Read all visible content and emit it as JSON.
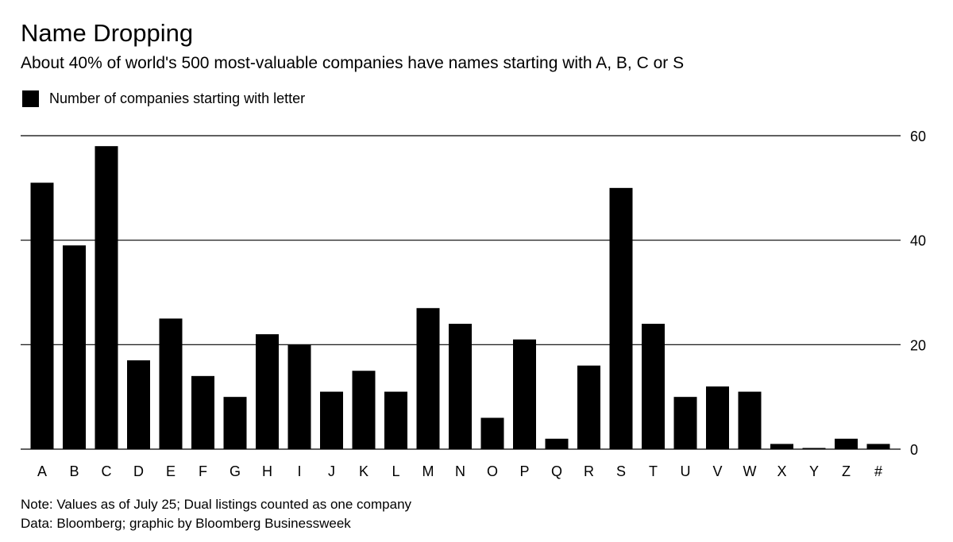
{
  "chart_data": {
    "type": "bar",
    "title": "Name Dropping",
    "subtitle": "About 40% of world's 500 most-valuable companies have names starting with A, B, C or S",
    "legend": [
      "Number of companies starting with letter"
    ],
    "categories": [
      "A",
      "B",
      "C",
      "D",
      "E",
      "F",
      "G",
      "H",
      "I",
      "J",
      "K",
      "L",
      "M",
      "N",
      "O",
      "P",
      "Q",
      "R",
      "S",
      "T",
      "U",
      "V",
      "W",
      "X",
      "Y",
      "Z",
      "#"
    ],
    "series": [
      {
        "name": "Number of companies starting with letter",
        "values": [
          51,
          39,
          58,
          17,
          25,
          14,
          10,
          22,
          20,
          11,
          15,
          11,
          27,
          24,
          6,
          21,
          2,
          16,
          50,
          24,
          10,
          12,
          11,
          1,
          0,
          2,
          1
        ]
      }
    ],
    "ylim": [
      0,
      60
    ],
    "yticks": [
      "0",
      "20",
      "40",
      "60"
    ],
    "grid": true,
    "y_axis_side": "right",
    "legend_position": "top-left",
    "colors": {
      "bar": "#000000",
      "grid": "#000000",
      "background": "#ffffff"
    }
  },
  "footer": {
    "note": "Note: Values as of July 25; Dual listings counted as one company",
    "source": "Data: Bloomberg; graphic by Bloomberg Businessweek"
  }
}
